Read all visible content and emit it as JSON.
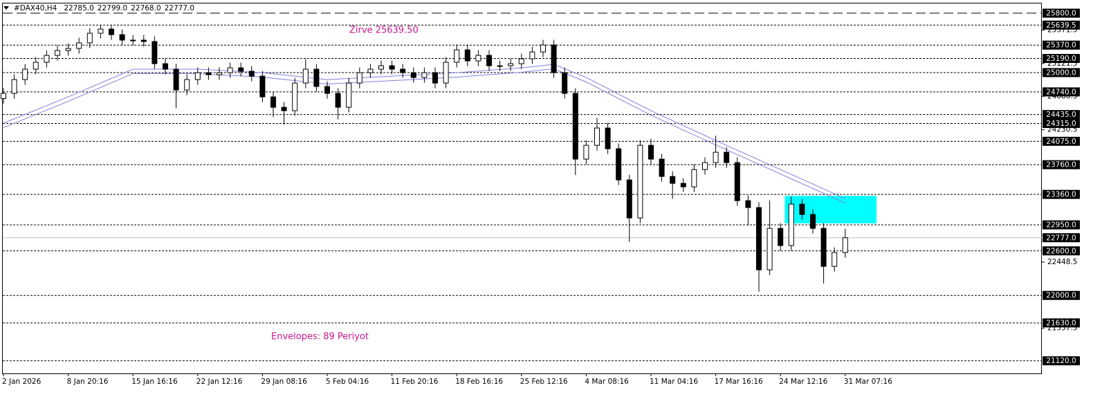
{
  "chart_data": {
    "type": "candlestick",
    "header": {
      "symbol": "#DAX40,H4",
      "ohlc": [
        {
          "value": 22785,
          "label": "22785.0"
        },
        {
          "value": 22799,
          "label": "22799.0"
        },
        {
          "value": 22768,
          "label": "22768.0"
        },
        {
          "value": 22777,
          "label": "22777.0"
        }
      ]
    },
    "annotations": [
      {
        "text": "Zirve 25639.50",
        "color": "#c8168c"
      },
      {
        "text": "Envelopes: 89 Periyot",
        "color": "#c8168c"
      }
    ],
    "categories": [
      "2 Jan 2026",
      null,
      null,
      null,
      null,
      null,
      "8 Jan 20:16",
      null,
      null,
      null,
      null,
      null,
      "15 Jan 16:16",
      null,
      null,
      null,
      null,
      null,
      "22 Jan 12:16",
      null,
      null,
      null,
      null,
      null,
      "29 Jan 08:16",
      null,
      null,
      null,
      null,
      null,
      "5 Feb 04:16",
      null,
      null,
      null,
      null,
      null,
      "11 Feb 20:16",
      null,
      null,
      null,
      null,
      null,
      "18 Feb 16:16",
      null,
      null,
      null,
      null,
      null,
      "25 Feb 12:16",
      null,
      null,
      null,
      null,
      null,
      "4 Mar 08:16",
      null,
      null,
      null,
      null,
      null,
      "11 Mar 04:16",
      null,
      null,
      null,
      null,
      null,
      "17 Mar 16:16",
      null,
      null,
      null,
      null,
      null,
      "24 Mar 12:16",
      null,
      null,
      null,
      null,
      null,
      "31 Mar 07:16"
    ],
    "open": [
      24650,
      24720,
      24906,
      25046,
      25139,
      25232,
      25297,
      25325,
      25400,
      25530,
      25586,
      25511,
      25437,
      25437,
      25418,
      25120,
      25046,
      24766,
      24906,
      24999,
      24971,
      24999,
      25064,
      25018,
      24952,
      24673,
      24533,
      24487,
      24859,
      25046,
      24813,
      24720,
      24533,
      24859,
      24999,
      25046,
      25092,
      25046,
      24999,
      24934,
      24999,
      24859,
      25139,
      25306,
      25157,
      25232,
      25092,
      25092,
      25120,
      25185,
      25278,
      25372,
      24999,
      24720,
      23835,
      24021,
      24254,
      23975,
      23555,
      23043,
      24021,
      23835,
      23602,
      23509,
      23462,
      23695,
      23788,
      23928,
      23788,
      23276,
      23183,
      22345,
      22903,
      22671,
      23229,
      23090,
      22903,
      22391,
      22577
    ],
    "high": [
      24790,
      24976,
      25116,
      25209,
      25302,
      25367,
      25395,
      25470,
      25600,
      25640,
      25630,
      25581,
      25507,
      25507,
      25488,
      25190,
      25116,
      24976,
      25069,
      25069,
      25069,
      25134,
      25134,
      25088,
      25022,
      24743,
      24603,
      24929,
      25180,
      25116,
      24883,
      24790,
      24929,
      25069,
      25116,
      25162,
      25162,
      25116,
      25069,
      25069,
      25069,
      25209,
      25376,
      25376,
      25302,
      25302,
      25162,
      25190,
      25255,
      25348,
      25442,
      25442,
      25069,
      24790,
      24091,
      24390,
      24324,
      24045,
      23625,
      24091,
      24110,
      23905,
      23672,
      23579,
      23765,
      23858,
      24150,
      23998,
      23858,
      23346,
      23253,
      23280,
      22973,
      23330,
      23299,
      23160,
      22973,
      22647,
      22900
    ],
    "low": [
      24580,
      24650,
      24836,
      24976,
      25069,
      25162,
      25227,
      25255,
      25330,
      25460,
      25441,
      25367,
      25367,
      25348,
      25050,
      24976,
      24520,
      24696,
      24836,
      24901,
      24901,
      24929,
      24948,
      24882,
      24603,
      24400,
      24300,
      24417,
      24789,
      24743,
      24650,
      24370,
      24463,
      24789,
      24929,
      24976,
      24976,
      24929,
      24864,
      24864,
      24789,
      24789,
      25069,
      25087,
      25087,
      25022,
      25022,
      25022,
      25050,
      25115,
      25208,
      24929,
      24650,
      23620,
      23765,
      23951,
      23905,
      23485,
      22720,
      22973,
      23765,
      23532,
      23300,
      23392,
      23392,
      23625,
      23718,
      23718,
      23206,
      22940,
      22050,
      22275,
      22601,
      22601,
      23020,
      22833,
      22160,
      22321,
      22507
    ],
    "close": [
      24720,
      24906,
      25046,
      25139,
      25232,
      25297,
      25325,
      25400,
      25530,
      25586,
      25511,
      25437,
      25437,
      25418,
      25120,
      25046,
      24766,
      24906,
      24999,
      24971,
      24999,
      25064,
      25018,
      24952,
      24673,
      24533,
      24487,
      24859,
      25046,
      24813,
      24720,
      24533,
      24859,
      24999,
      25046,
      25092,
      25046,
      24999,
      24934,
      24999,
      24859,
      25139,
      25306,
      25157,
      25232,
      25092,
      25092,
      25120,
      25185,
      25278,
      25372,
      24999,
      24720,
      23835,
      24021,
      24254,
      23975,
      23555,
      23043,
      24021,
      23835,
      23602,
      23509,
      23462,
      23695,
      23788,
      23928,
      23788,
      23276,
      23183,
      22345,
      22903,
      22671,
      23229,
      23090,
      22903,
      22391,
      22577,
      22777
    ],
    "up_color": "#ffffff",
    "down_color": "#000000",
    "ylim": [
      20950,
      25940
    ],
    "yticks": [
      25571.5,
      25121.5,
      24680.5,
      24230.5,
      22448.5,
      21557.5
    ],
    "top_level": {
      "value": 25800,
      "label": "25800.0"
    },
    "levels": [
      25639.5,
      {
        "value": 25370,
        "label": "25370.0"
      },
      {
        "value": 25190,
        "label": "25190.0"
      },
      {
        "value": 25000,
        "label": "25000.0"
      },
      {
        "value": 24740,
        "label": "24740.0"
      },
      {
        "value": 24435,
        "label": "24435.0"
      },
      {
        "value": 24315,
        "label": "24315.0"
      },
      {
        "value": 24075,
        "label": "24075.0"
      },
      {
        "value": 23760,
        "label": "23760.0"
      },
      {
        "value": 23360,
        "label": "23360.0"
      },
      {
        "value": 22950,
        "label": "22950.0"
      },
      {
        "value": 22600,
        "label": "22600.0"
      },
      {
        "value": 22000,
        "label": "22000.0"
      },
      {
        "value": 21630,
        "label": "21630.0"
      },
      {
        "value": 21120,
        "label": "21120.0"
      }
    ],
    "current_price": {
      "value": 22777,
      "label": "22777.0"
    },
    "envelope": {
      "color": "#7f7fe0",
      "x": [
        0,
        6,
        12,
        18,
        24,
        30,
        36,
        42,
        48,
        51,
        54,
        60,
        66,
        72,
        78
      ],
      "upper": [
        24319,
        24673,
        25046,
        25046,
        24999,
        24906,
        24952,
        24999,
        25064,
        25111,
        24934,
        24487,
        24086,
        23695,
        23304
      ],
      "lower": [
        24259,
        24613,
        24986,
        24986,
        24939,
        24846,
        24892,
        24939,
        25004,
        25051,
        24874,
        24427,
        24026,
        23635,
        23244
      ]
    },
    "zone": {
      "color": "#00ffff",
      "top": 23340,
      "bottom": 22970,
      "start": 72.4,
      "end": 80.9
    }
  }
}
